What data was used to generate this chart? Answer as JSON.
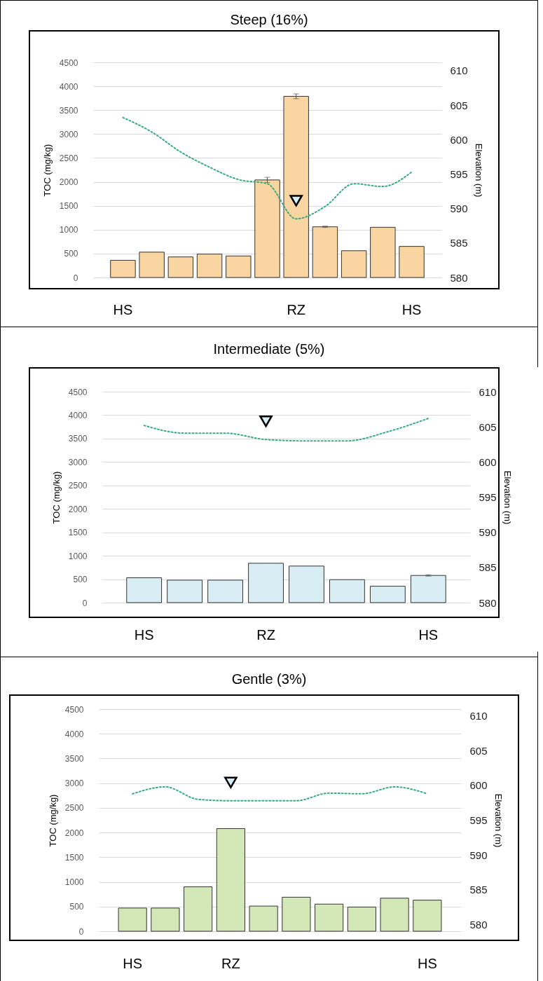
{
  "chart_data": [
    {
      "type": "bar",
      "title": "Steep (16%)",
      "ylabel": "TOC (mg/kg)",
      "y2label": "Elevation (m)",
      "categories": [
        "HS",
        null,
        null,
        null,
        null,
        null,
        "RZ",
        null,
        null,
        null,
        "HS"
      ],
      "series": [
        {
          "type": "bar",
          "color": "#f8d5a1",
          "values": [
            360,
            530,
            430,
            490,
            450,
            2040,
            3790,
            1060,
            560,
            1050,
            650
          ],
          "errors": [
            null,
            null,
            null,
            null,
            null,
            55,
            50,
            15,
            null,
            null,
            null
          ]
        },
        {
          "type": "line",
          "axis": "y2",
          "color": "#3aaa80",
          "line_style": "dotted",
          "values": [
            603.2,
            601.1,
            598.2,
            596.0,
            594.2,
            593.6,
            588.5,
            590.3,
            593.6,
            593.2,
            595.3
          ]
        }
      ],
      "ylim": [
        0,
        4500
      ],
      "yticks": [
        0,
        500,
        1000,
        1500,
        2000,
        2500,
        3000,
        3500,
        4000,
        4500
      ],
      "y2lim": [
        580,
        611.2
      ],
      "y2ticks": [
        580,
        585,
        590,
        595,
        600,
        605,
        610
      ],
      "grid": "y"
    },
    {
      "type": "bar",
      "title": "Intermediate (5%)",
      "ylabel": "TOC (mg/kg)",
      "y2label": "Elevation (m)",
      "categories": [
        "HS",
        null,
        null,
        "RZ",
        null,
        null,
        null,
        "HS"
      ],
      "series": [
        {
          "type": "bar",
          "color": "#d9eef4",
          "values": [
            530,
            480,
            480,
            840,
            780,
            490,
            350,
            580
          ],
          "errors": [
            null,
            null,
            null,
            null,
            null,
            null,
            null,
            15
          ]
        },
        {
          "type": "line",
          "axis": "y2",
          "color": "#3aaa80",
          "line_style": "dotted",
          "values": [
            605.2,
            604.1,
            604.1,
            603.2,
            603.0,
            603.0,
            604.3,
            606.2
          ]
        }
      ],
      "ylim": [
        0,
        4500
      ],
      "yticks": [
        0,
        500,
        1000,
        1500,
        2000,
        2500,
        3000,
        3500,
        4000,
        4500
      ],
      "y2lim": [
        580,
        610
      ],
      "y2ticks": [
        580,
        585,
        590,
        595,
        600,
        605,
        610
      ],
      "grid": "y"
    },
    {
      "type": "bar",
      "title": "Gentle (3%)",
      "ylabel": "TOC (mg/kg)",
      "y2label": "Elevation (m)",
      "categories": [
        "HS",
        null,
        null,
        "RZ",
        null,
        null,
        null,
        null,
        null,
        "HS"
      ],
      "series": [
        {
          "type": "bar",
          "color": "#d4e7b7",
          "values": [
            470,
            470,
            900,
            2080,
            510,
            690,
            550,
            490,
            670,
            630
          ]
        },
        {
          "type": "line",
          "axis": "y2",
          "color": "#3aaa80",
          "line_style": "dotted",
          "values": [
            598.8,
            599.8,
            598.0,
            597.8,
            597.8,
            597.8,
            598.9,
            598.8,
            599.8,
            598.8
          ]
        }
      ],
      "ylim": [
        0,
        4500
      ],
      "yticks": [
        0,
        500,
        1000,
        1500,
        2000,
        2500,
        3000,
        3500,
        4000,
        4500
      ],
      "y2lim": [
        579,
        611
      ],
      "y2ticks": [
        580,
        585,
        590,
        595,
        600,
        605,
        610
      ],
      "grid": "y"
    }
  ]
}
